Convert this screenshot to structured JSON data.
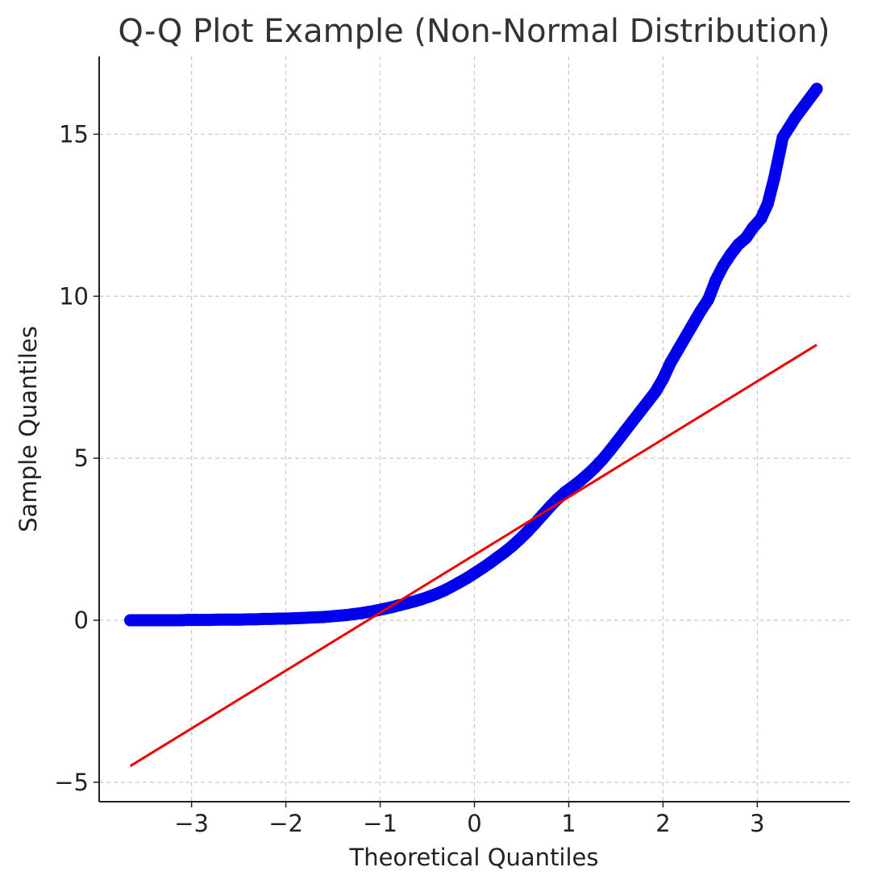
{
  "chart_data": {
    "type": "scatter",
    "title": "Q-Q Plot Example (Non-Normal Distribution)",
    "xlabel": "Theoretical Quantiles",
    "ylabel": "Sample Quantiles",
    "xlim": [
      -3.98,
      3.98
    ],
    "ylim": [
      -5.6,
      17.4
    ],
    "grid": true,
    "x_ticks": [
      {
        "value": -3,
        "label": "−3"
      },
      {
        "value": -2,
        "label": "−2"
      },
      {
        "value": -1,
        "label": "−1"
      },
      {
        "value": 0,
        "label": "0"
      },
      {
        "value": 1,
        "label": "1"
      },
      {
        "value": 2,
        "label": "2"
      },
      {
        "value": 3,
        "label": "3"
      }
    ],
    "y_ticks": [
      {
        "value": -5,
        "label": "−5"
      },
      {
        "value": 0,
        "label": "0"
      },
      {
        "value": 5,
        "label": "5"
      },
      {
        "value": 10,
        "label": "10"
      },
      {
        "value": 15,
        "label": "15"
      }
    ],
    "series": [
      {
        "type": "scatter",
        "color": "#0000ee",
        "points": [
          [
            -3.65,
            0.0
          ],
          [
            -3.41,
            0.0
          ],
          [
            -3.29,
            0.0
          ],
          [
            -3.2,
            0.0
          ],
          [
            -3.12,
            0.0
          ],
          [
            -3.04,
            0.01
          ],
          [
            -2.96,
            0.01
          ],
          [
            -2.88,
            0.01
          ],
          [
            -2.8,
            0.01
          ],
          [
            -2.72,
            0.02
          ],
          [
            -2.64,
            0.02
          ],
          [
            -2.56,
            0.02
          ],
          [
            -2.48,
            0.02
          ],
          [
            -2.4,
            0.03
          ],
          [
            -2.32,
            0.03
          ],
          [
            -2.24,
            0.04
          ],
          [
            -2.16,
            0.04
          ],
          [
            -2.08,
            0.05
          ],
          [
            -2.0,
            0.05
          ],
          [
            -1.92,
            0.06
          ],
          [
            -1.84,
            0.07
          ],
          [
            -1.76,
            0.08
          ],
          [
            -1.68,
            0.09
          ],
          [
            -1.6,
            0.1
          ],
          [
            -1.52,
            0.12
          ],
          [
            -1.44,
            0.14
          ],
          [
            -1.36,
            0.16
          ],
          [
            -1.28,
            0.19
          ],
          [
            -1.2,
            0.22
          ],
          [
            -1.12,
            0.26
          ],
          [
            -1.04,
            0.3
          ],
          [
            -0.96,
            0.35
          ],
          [
            -0.88,
            0.4
          ],
          [
            -0.8,
            0.46
          ],
          [
            -0.72,
            0.52
          ],
          [
            -0.64,
            0.58
          ],
          [
            -0.56,
            0.65
          ],
          [
            -0.48,
            0.73
          ],
          [
            -0.4,
            0.82
          ],
          [
            -0.32,
            0.92
          ],
          [
            -0.24,
            1.04
          ],
          [
            -0.16,
            1.17
          ],
          [
            -0.08,
            1.3
          ],
          [
            0.0,
            1.45
          ],
          [
            0.08,
            1.6
          ],
          [
            0.16,
            1.76
          ],
          [
            0.24,
            1.93
          ],
          [
            0.32,
            2.1
          ],
          [
            0.4,
            2.29
          ],
          [
            0.48,
            2.5
          ],
          [
            0.56,
            2.73
          ],
          [
            0.64,
            2.98
          ],
          [
            0.72,
            3.24
          ],
          [
            0.8,
            3.5
          ],
          [
            0.88,
            3.74
          ],
          [
            0.96,
            3.95
          ],
          [
            1.04,
            4.12
          ],
          [
            1.12,
            4.3
          ],
          [
            1.2,
            4.5
          ],
          [
            1.28,
            4.72
          ],
          [
            1.36,
            4.97
          ],
          [
            1.44,
            5.25
          ],
          [
            1.52,
            5.55
          ],
          [
            1.6,
            5.85
          ],
          [
            1.68,
            6.15
          ],
          [
            1.76,
            6.45
          ],
          [
            1.84,
            6.75
          ],
          [
            1.92,
            7.05
          ],
          [
            2.0,
            7.45
          ],
          [
            2.08,
            7.95
          ],
          [
            2.16,
            8.35
          ],
          [
            2.24,
            8.75
          ],
          [
            2.32,
            9.15
          ],
          [
            2.4,
            9.55
          ],
          [
            2.48,
            9.9
          ],
          [
            2.56,
            10.5
          ],
          [
            2.64,
            10.95
          ],
          [
            2.72,
            11.3
          ],
          [
            2.8,
            11.6
          ],
          [
            2.88,
            11.8
          ],
          [
            2.95,
            12.1
          ],
          [
            3.04,
            12.4
          ],
          [
            3.11,
            12.85
          ],
          [
            3.18,
            13.65
          ],
          [
            3.27,
            14.9
          ],
          [
            3.4,
            15.5
          ],
          [
            3.63,
            16.4
          ]
        ]
      },
      {
        "type": "line",
        "color": "#ee0000",
        "points": [
          [
            -3.65,
            -4.5
          ],
          [
            3.63,
            8.5
          ]
        ]
      }
    ]
  }
}
